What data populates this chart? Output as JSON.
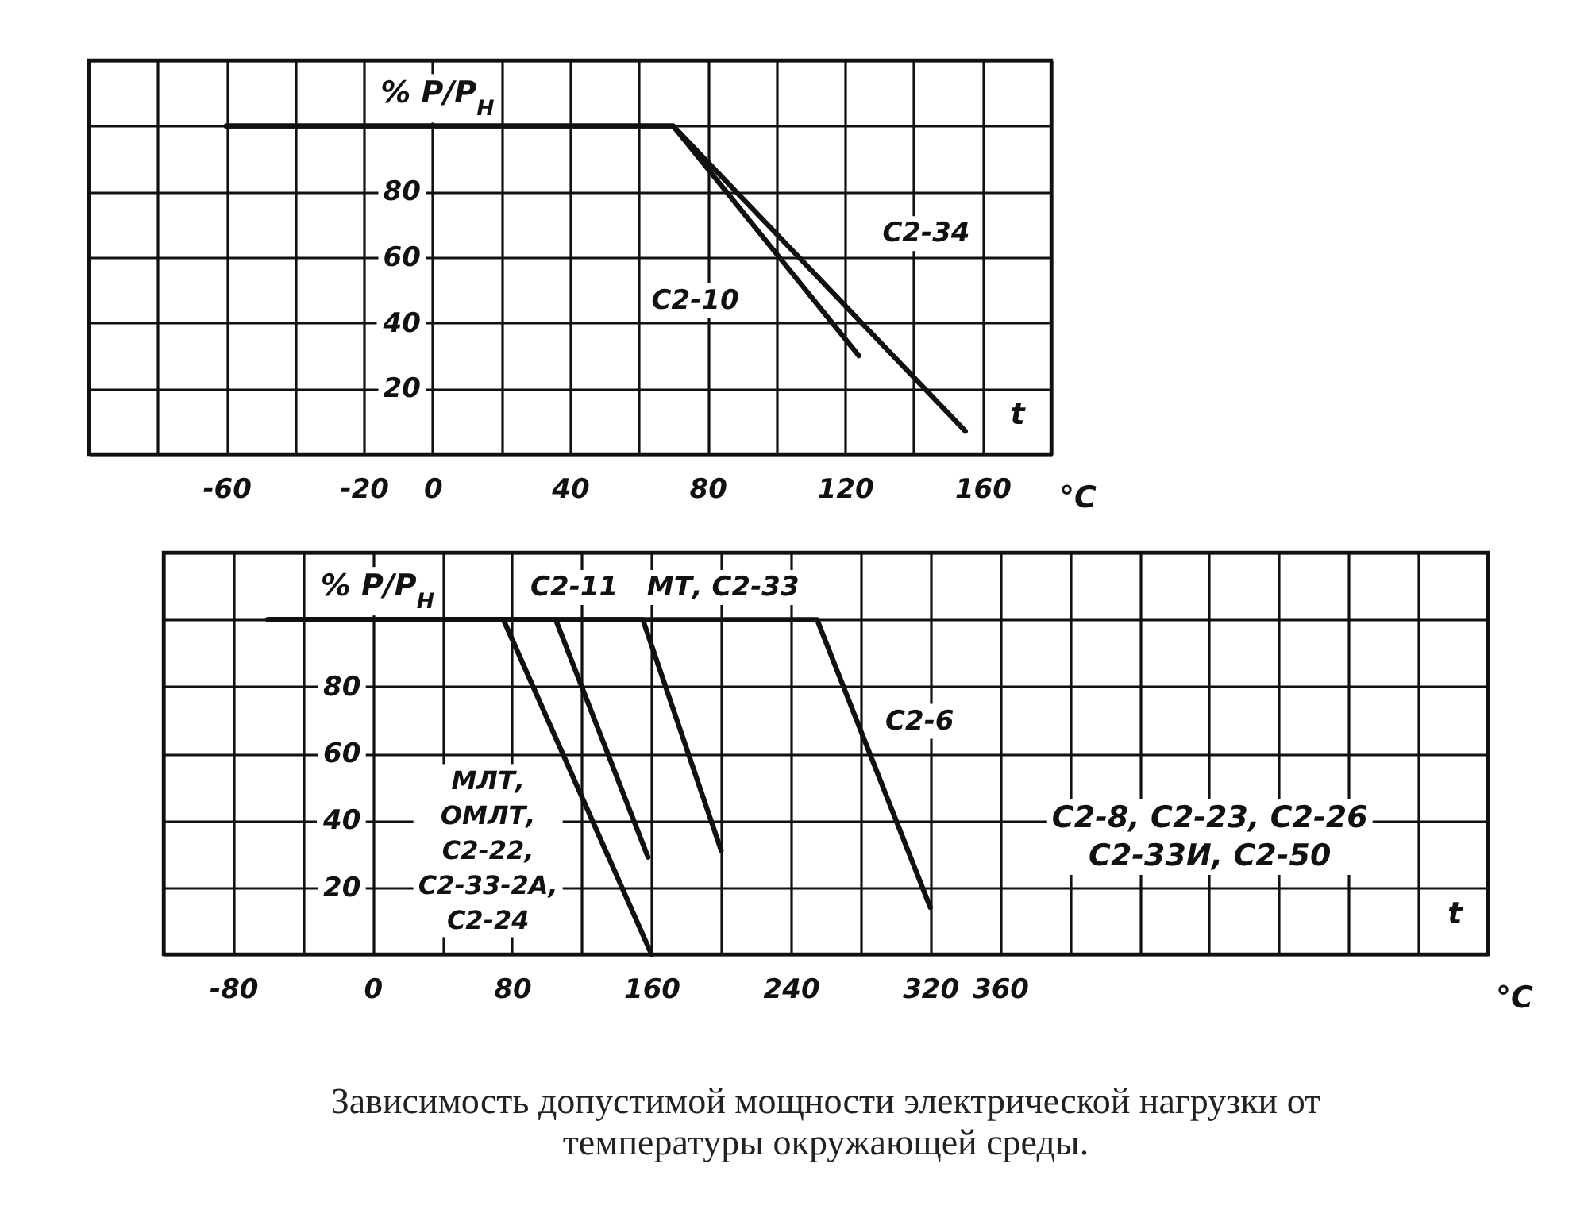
{
  "chart_data": [
    {
      "type": "line",
      "ylabel": "% P/P$_{Н}$",
      "xlabel": "°C",
      "annotations": [
        "t"
      ],
      "xlim": [
        -100,
        180
      ],
      "xticks": [
        {
          "value": -100,
          "label": null
        },
        {
          "value": -80,
          "label": null
        },
        -60,
        {
          "value": -40,
          "label": null
        },
        -20,
        0,
        {
          "value": 20,
          "label": null
        },
        40,
        {
          "value": 60,
          "label": null
        },
        80,
        {
          "value": 100,
          "label": null
        },
        120,
        {
          "value": 140,
          "label": null
        },
        160,
        {
          "value": 180,
          "label": null
        }
      ],
      "ylim": [
        0,
        120
      ],
      "yticks": [
        {
          "value": 0,
          "label": null
        },
        20,
        40,
        60,
        80,
        {
          "value": 100,
          "label": null
        },
        {
          "value": 120,
          "label": null
        }
      ],
      "grid": true,
      "marker": "none",
      "line_style": "solid",
      "series": [
        {
          "name": "С2-10",
          "color": "#111111",
          "x": [
            -60,
            70,
            124
          ],
          "values": [
            100,
            100,
            30
          ]
        },
        {
          "name": "С2-34",
          "color": "#111111",
          "x": [
            -60,
            70,
            155
          ],
          "values": [
            100,
            100,
            7
          ]
        }
      ]
    },
    {
      "type": "line",
      "title": "Зависимость допустимой мощности электрической нагрузки от температуры окружающей среды.",
      "ylabel": "% P/P$_{Н}$",
      "xlabel": "°C",
      "annotations": [
        "С2-8, С2-23, С2-26\nС2-33И, С2-50",
        "t"
      ],
      "xlim": [
        -120,
        640
      ],
      "xticks": [
        {
          "value": -120,
          "label": null
        },
        -80,
        {
          "value": -40,
          "label": null
        },
        0,
        {
          "value": 40,
          "label": null
        },
        80,
        {
          "value": 120,
          "label": null
        },
        160,
        {
          "value": 200,
          "label": null
        },
        240,
        {
          "value": 280,
          "label": null
        },
        320,
        360,
        {
          "value": 400,
          "label": null
        },
        {
          "value": 440,
          "label": null
        },
        {
          "value": 480,
          "label": null
        },
        {
          "value": 520,
          "label": null
        },
        {
          "value": 560,
          "label": null
        },
        {
          "value": 600,
          "label": null
        },
        {
          "value": 640,
          "label": null
        }
      ],
      "ylim": [
        0,
        120
      ],
      "yticks": [
        {
          "value": 0,
          "label": null
        },
        20,
        40,
        60,
        80,
        {
          "value": 100,
          "label": null
        },
        {
          "value": 120,
          "label": null
        }
      ],
      "grid": true,
      "marker": "none",
      "line_style": "solid",
      "series": [
        {
          "name": "МЛТ,\nОМЛТ,\nС2-22,\nС2-33-2А,\nС2-24",
          "color": "#111111",
          "x": [
            -60,
            75,
            160
          ],
          "values": [
            100,
            100,
            0
          ]
        },
        {
          "name": "С2-11",
          "color": "#111111",
          "x": [
            -60,
            105,
            158
          ],
          "values": [
            100,
            100,
            29
          ]
        },
        {
          "name": "МТ, С2-33",
          "color": "#111111",
          "x": [
            -60,
            155,
            200
          ],
          "values": [
            100,
            100,
            31
          ]
        },
        {
          "name": "С2-6",
          "color": "#111111",
          "x": [
            -60,
            255,
            320
          ],
          "values": [
            100,
            100,
            14
          ]
        }
      ]
    }
  ]
}
